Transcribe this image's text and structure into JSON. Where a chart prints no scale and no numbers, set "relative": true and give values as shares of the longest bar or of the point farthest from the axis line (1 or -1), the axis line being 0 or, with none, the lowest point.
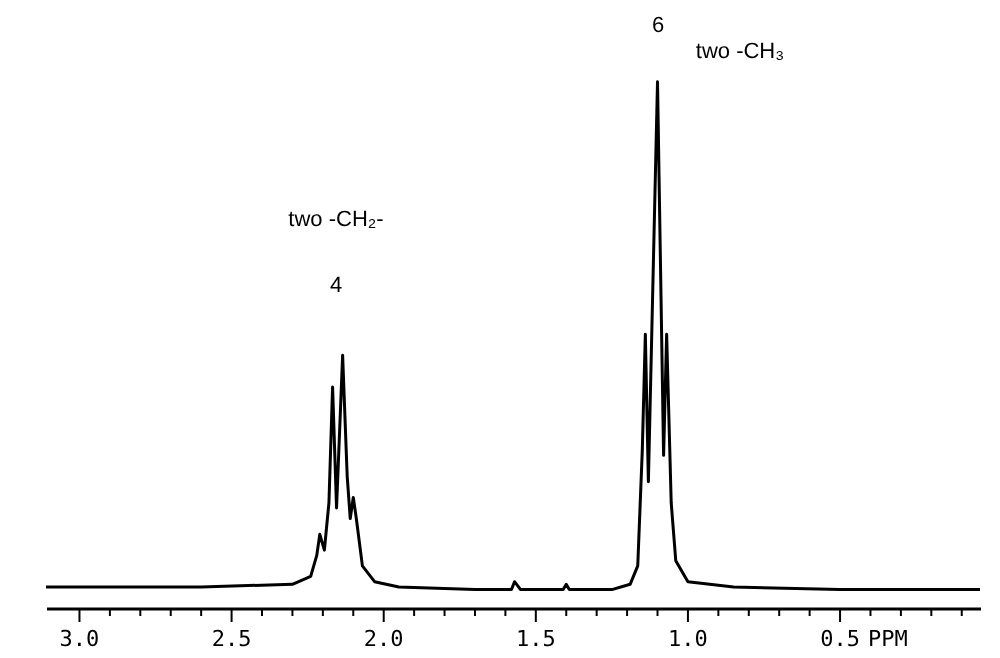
{
  "chart_data": {
    "type": "line",
    "relative": true,
    "color": "#000000",
    "line_style": "solid",
    "x": [
      3.11,
      2.6,
      2.3,
      2.24,
      2.22,
      2.21,
      2.195,
      2.18,
      2.168,
      2.155,
      2.135,
      2.12,
      2.11,
      2.1,
      2.09,
      2.07,
      2.03,
      1.95,
      1.7,
      1.58,
      1.57,
      1.55,
      1.41,
      1.4,
      1.39,
      1.25,
      1.19,
      1.165,
      1.15,
      1.14,
      1.13,
      1.1,
      1.08,
      1.07,
      1.055,
      1.04,
      1.0,
      0.85,
      0.5,
      0.04
    ],
    "values": [
      0.04,
      0.04,
      0.045,
      0.06,
      0.1,
      0.14,
      0.11,
      0.2,
      0.42,
      0.19,
      0.48,
      0.25,
      0.17,
      0.21,
      0.17,
      0.08,
      0.05,
      0.04,
      0.035,
      0.035,
      0.05,
      0.035,
      0.035,
      0.045,
      0.035,
      0.035,
      0.045,
      0.08,
      0.3,
      0.52,
      0.24,
      1.0,
      0.29,
      0.52,
      0.2,
      0.09,
      0.05,
      0.04,
      0.035,
      0.035
    ],
    "xlim": [
      3.11,
      0.04
    ],
    "xlabel": "PPM",
    "xticks": [
      {
        "value": 3.0,
        "label": "3.0"
      },
      {
        "value": 2.9,
        "label": null
      },
      {
        "value": 2.8,
        "label": null
      },
      {
        "value": 2.7,
        "label": null
      },
      {
        "value": 2.6,
        "label": null
      },
      {
        "value": 2.5,
        "label": "2.5"
      },
      {
        "value": 2.4,
        "label": null
      },
      {
        "value": 2.3,
        "label": null
      },
      {
        "value": 2.2,
        "label": null
      },
      {
        "value": 2.1,
        "label": null
      },
      {
        "value": 2.0,
        "label": "2.0"
      },
      {
        "value": 1.9,
        "label": null
      },
      {
        "value": 1.8,
        "label": null
      },
      {
        "value": 1.7,
        "label": null
      },
      {
        "value": 1.6,
        "label": null
      },
      {
        "value": 1.5,
        "label": "1.5"
      },
      {
        "value": 1.4,
        "label": null
      },
      {
        "value": 1.3,
        "label": null
      },
      {
        "value": 1.2,
        "label": null
      },
      {
        "value": 1.1,
        "label": null
      },
      {
        "value": 1.0,
        "label": "1.0"
      },
      {
        "value": 0.9,
        "label": null
      },
      {
        "value": 0.8,
        "label": null
      },
      {
        "value": 0.7,
        "label": null
      },
      {
        "value": 0.6,
        "label": null
      },
      {
        "value": 0.5,
        "label": "0.5"
      },
      {
        "value": 0.4,
        "label": null
      },
      {
        "value": 0.3,
        "label": null
      },
      {
        "value": 0.2,
        "label": null
      },
      {
        "value": 0.1,
        "label": null
      }
    ],
    "annotations": [
      "two -CH₂-",
      "4",
      "6",
      "two -CH₃"
    ]
  }
}
